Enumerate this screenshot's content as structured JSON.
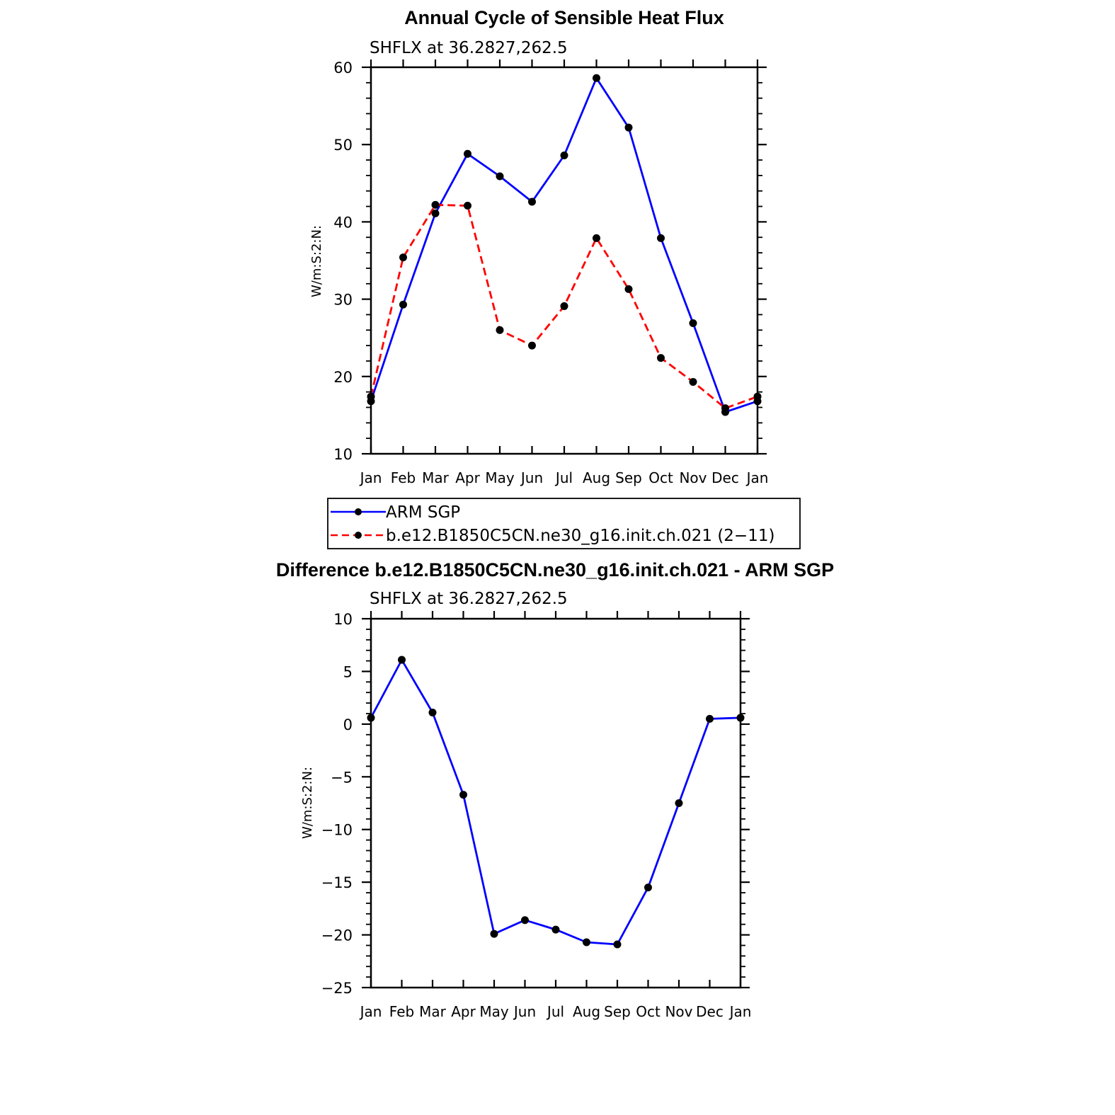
{
  "chart_data": [
    {
      "type": "line",
      "title": "Annual Cycle of Sensible Heat Flux",
      "subtitle": "SHFLX at 36.2827,262.5",
      "xlabel": "",
      "ylabel": "W/m:S:2:N:",
      "categories": [
        "Jan",
        "Feb",
        "Mar",
        "Apr",
        "May",
        "Jun",
        "Jul",
        "Aug",
        "Sep",
        "Oct",
        "Nov",
        "Dec",
        "Jan"
      ],
      "ylim": [
        10,
        60
      ],
      "yticks": [
        10,
        20,
        30,
        40,
        50,
        60
      ],
      "series": [
        {
          "name": "ARM SGP",
          "color": "#0000ff",
          "dash": "solid",
          "values": [
            16.8,
            29.3,
            41.1,
            48.8,
            45.9,
            42.6,
            48.6,
            58.6,
            52.2,
            37.9,
            26.9,
            15.4,
            16.8
          ]
        },
        {
          "name": "b.e12.B1850C5CN.ne30_g16.init.ch.021 (2−11)",
          "color": "#ff0000",
          "dash": "dashed",
          "values": [
            17.4,
            35.4,
            42.2,
            42.1,
            26.0,
            24.0,
            29.1,
            37.9,
            31.3,
            22.4,
            19.3,
            15.9,
            17.4
          ]
        }
      ],
      "legend": "below"
    },
    {
      "type": "line",
      "title": "Difference b.e12.B1850C5CN.ne30_g16.init.ch.021 - ARM SGP",
      "subtitle": "SHFLX at 36.2827,262.5",
      "xlabel": "",
      "ylabel": "W/m:S:2:N:",
      "categories": [
        "Jan",
        "Feb",
        "Mar",
        "Apr",
        "May",
        "Jun",
        "Jul",
        "Aug",
        "Sep",
        "Oct",
        "Nov",
        "Dec",
        "Jan"
      ],
      "ylim": [
        -25,
        10
      ],
      "yticks": [
        -25,
        -20,
        -15,
        -10,
        -5,
        0,
        5,
        10
      ],
      "ytick_labels": [
        "−25",
        "−20",
        "−15",
        "−10",
        "−5",
        "0",
        "5",
        "10"
      ],
      "series": [
        {
          "name": "Difference",
          "color": "#0000ff",
          "dash": "solid",
          "values": [
            0.6,
            6.1,
            1.1,
            -6.7,
            -19.9,
            -18.6,
            -19.5,
            -20.7,
            -20.9,
            -15.5,
            -7.5,
            0.5,
            0.6
          ]
        }
      ]
    }
  ],
  "legend_items": [
    {
      "label": "ARM SGP",
      "color": "#0000ff",
      "dash": "solid"
    },
    {
      "label": "b.e12.B1850C5CN.ne30_g16.init.ch.021 (2−11)",
      "color": "#ff0000",
      "dash": "dashed"
    }
  ]
}
